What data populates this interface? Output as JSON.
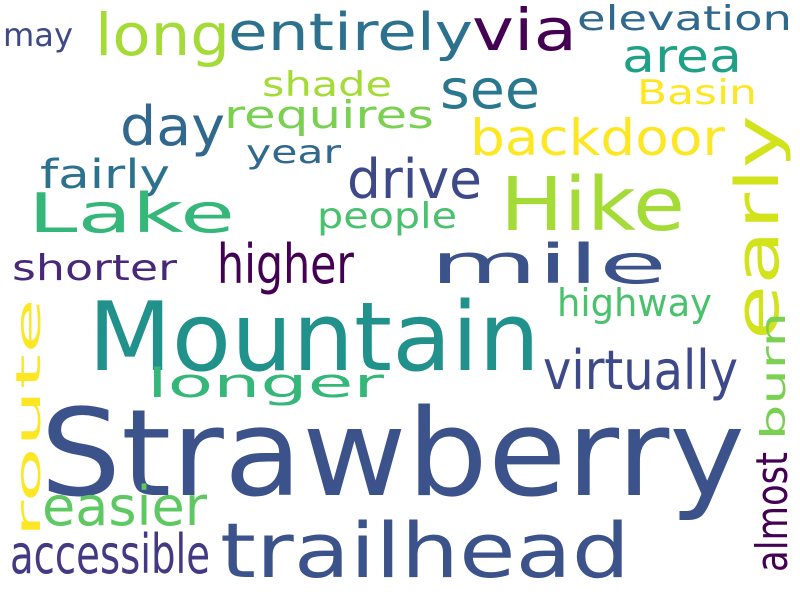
{
  "words": [
    {
      "text": "Strawberry",
      "color": "#3b528b"
    },
    {
      "text": "Mountain",
      "color": "#21918c"
    },
    {
      "text": "trailhead",
      "color": "#3b528b"
    },
    {
      "text": "Hike",
      "color": "#a5db36"
    },
    {
      "text": "long",
      "color": "#a5db36"
    },
    {
      "text": "entirely",
      "color": "#2c728e"
    },
    {
      "text": "via",
      "color": "#440154"
    },
    {
      "text": "elevation",
      "color": "#31688e"
    },
    {
      "text": "may",
      "color": "#3e4989"
    },
    {
      "text": "area",
      "color": "#1fa187"
    },
    {
      "text": "see",
      "color": "#2a788e"
    },
    {
      "text": "shade",
      "color": "#a5db36"
    },
    {
      "text": "Basin",
      "color": "#fde725"
    },
    {
      "text": "day",
      "color": "#31688e"
    },
    {
      "text": "requires",
      "color": "#7ad151"
    },
    {
      "text": "backdoor",
      "color": "#fde725"
    },
    {
      "text": "year",
      "color": "#31688e"
    },
    {
      "text": "fairly",
      "color": "#2c728e"
    },
    {
      "text": "drive",
      "color": "#3e4989"
    },
    {
      "text": "Lake",
      "color": "#35b779"
    },
    {
      "text": "people",
      "color": "#4ac16d"
    },
    {
      "text": "higher",
      "color": "#440154"
    },
    {
      "text": "mile",
      "color": "#3b528b"
    },
    {
      "text": "shorter",
      "color": "#482878"
    },
    {
      "text": "highway",
      "color": "#4ac16d"
    },
    {
      "text": "longer",
      "color": "#35b779"
    },
    {
      "text": "virtually",
      "color": "#3e4989"
    },
    {
      "text": "easier",
      "color": "#5ec962"
    },
    {
      "text": "accessible",
      "color": "#443983"
    },
    {
      "text": "early",
      "color": "#d2e21b"
    },
    {
      "text": "route",
      "color": "#fde725"
    },
    {
      "text": "burn",
      "color": "#7ad151"
    },
    {
      "text": "almost",
      "color": "#440154"
    }
  ]
}
